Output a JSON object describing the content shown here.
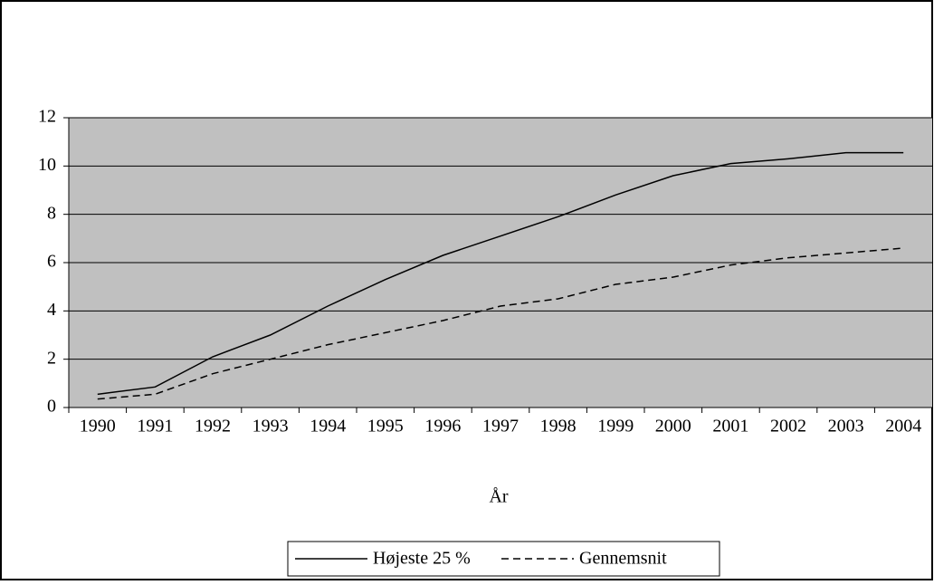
{
  "chart_data": {
    "type": "line",
    "x_label": "År",
    "categories": [
      "1990",
      "1991",
      "1992",
      "1993",
      "1994",
      "1995",
      "1996",
      "1997",
      "1998",
      "1999",
      "2000",
      "2001",
      "2002",
      "2003",
      "2004"
    ],
    "series": [
      {
        "name": "Højeste 25 %",
        "color": "#000000",
        "dash": "solid",
        "values": [
          0.55,
          0.85,
          2.1,
          3.0,
          4.2,
          5.3,
          6.3,
          7.1,
          7.9,
          8.8,
          9.6,
          10.1,
          10.3,
          10.55,
          10.55
        ]
      },
      {
        "name": "Gennemsnit",
        "color": "#000000",
        "dash": "dashed",
        "values": [
          0.35,
          0.55,
          1.4,
          2.0,
          2.6,
          3.1,
          3.6,
          4.2,
          4.5,
          5.1,
          5.4,
          5.9,
          6.2,
          6.4,
          6.6
        ]
      }
    ],
    "ylim": [
      0,
      12
    ],
    "yticks": [
      0,
      2,
      4,
      6,
      8,
      10,
      12
    ],
    "grid": true,
    "plot_background": "#c0c0c0",
    "legend": "bottom"
  }
}
